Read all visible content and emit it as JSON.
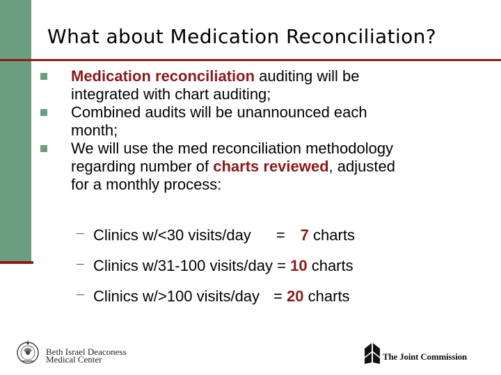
{
  "slide": {
    "title": "What about Medication Reconciliation?",
    "bullets": [
      {
        "highlight": "Medication reconciliation",
        "rest_line1": " auditing will be",
        "line2": "integrated with chart auditing;"
      },
      {
        "line1": "Combined audits will be unannounced each",
        "line2": "month;"
      },
      {
        "line1": "We will use the med reconciliation methodology",
        "line2_before": "regarding number of ",
        "line2_highlight": "charts reviewed",
        "line2_after": ", adjusted",
        "line3": "for a monthly process:"
      }
    ],
    "sub_items": [
      {
        "label": "Clinics w/<30 visits/day",
        "eq": "=",
        "value": "7",
        "unit": "charts"
      },
      {
        "label": "Clinics w/31-100 visits/day",
        "eq": "=",
        "value": "10",
        "unit": "charts"
      },
      {
        "label": "Clinics w/>100 visits/day",
        "eq": "=",
        "value": "20",
        "unit": "charts"
      }
    ]
  },
  "logos": {
    "bidmc_line1": "Beth Israel Deaconess",
    "bidmc_line2": "Medical Center",
    "tjc_name": "The Joint Commission"
  },
  "colors": {
    "accent_green": "#6b9e7f",
    "accent_red": "#8b1a1a"
  }
}
